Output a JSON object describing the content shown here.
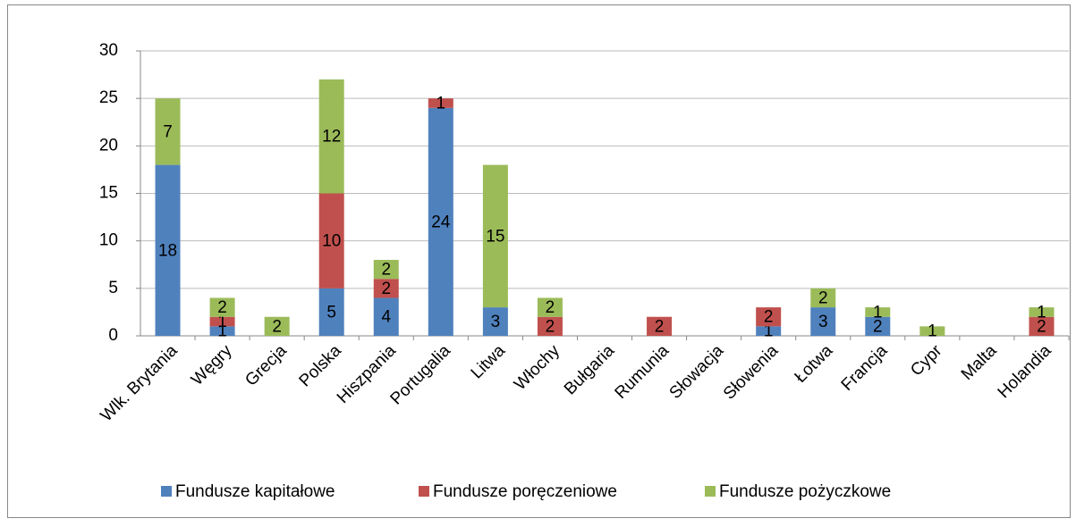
{
  "chart_data": {
    "type": "stacked_bar",
    "categories": [
      "Wlk. Brytania",
      "Węgry",
      "Grecja",
      "Polska",
      "Hiszpania",
      "Portugalia",
      "Litwa",
      "Włochy",
      "Bułgaria",
      "Rumunia",
      "Słowacja",
      "Słowenia",
      "Łotwa",
      "Francja",
      "Cypr",
      "Malta",
      "Holandia"
    ],
    "series": [
      {
        "name": "Fundusze kapitałowe",
        "color": "#4f81bd",
        "values": [
          18,
          1,
          null,
          5,
          4,
          24,
          3,
          null,
          null,
          null,
          null,
          1,
          3,
          2,
          null,
          null,
          null
        ]
      },
      {
        "name": "Fundusze poręczeniowe",
        "color": "#c0504d",
        "values": [
          null,
          1,
          null,
          10,
          2,
          1,
          null,
          2,
          null,
          2,
          null,
          2,
          null,
          null,
          null,
          null,
          2
        ]
      },
      {
        "name": "Fundusze pożyczkowe",
        "color": "#9bbb59",
        "values": [
          7,
          2,
          2,
          12,
          2,
          null,
          15,
          2,
          null,
          null,
          null,
          null,
          2,
          1,
          1,
          null,
          1
        ]
      }
    ],
    "ylim": [
      0,
      30
    ],
    "yticks": [
      0,
      5,
      10,
      15,
      20,
      25,
      30
    ],
    "grid": true,
    "legend": "bottom"
  }
}
